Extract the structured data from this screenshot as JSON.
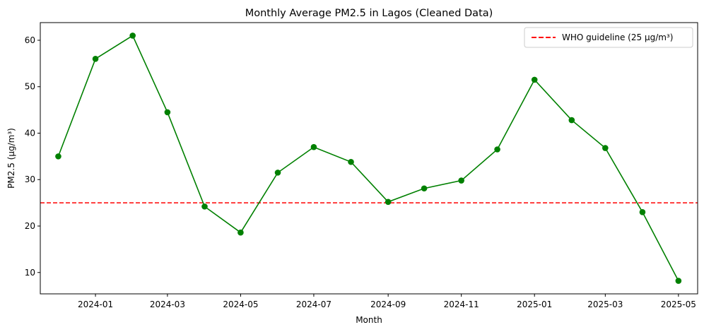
{
  "chart_data": {
    "type": "line",
    "title": "Monthly Average PM2.5 in Lagos (Cleaned Data)",
    "xlabel": "Month",
    "ylabel": "PM2.5 (µg/m³)",
    "x": [
      "2023-12-01",
      "2024-01-01",
      "2024-02-01",
      "2024-03-01",
      "2024-04-01",
      "2024-05-01",
      "2024-06-01",
      "2024-07-01",
      "2024-08-01",
      "2024-09-01",
      "2024-10-01",
      "2024-11-01",
      "2024-12-01",
      "2025-01-01",
      "2025-02-01",
      "2025-03-01",
      "2025-04-01",
      "2025-05-01"
    ],
    "series": [
      {
        "values": [
          35.0,
          56.0,
          61.0,
          44.5,
          24.2,
          18.6,
          31.5,
          37.0,
          33.8,
          25.2,
          28.1,
          29.8,
          36.5,
          51.5,
          42.8,
          36.8,
          23.0,
          8.2
        ],
        "color": "#008000",
        "marker": "circle"
      }
    ],
    "reference_lines": [
      {
        "label": "WHO guideline (25 µg/m³)",
        "y": 25,
        "color": "#ff0000",
        "style": "dashed"
      }
    ],
    "xticks": [
      "2024-01",
      "2024-03",
      "2024-05",
      "2024-07",
      "2024-09",
      "2024-11",
      "2025-01",
      "2025-03",
      "2025-05"
    ],
    "yticks": [
      10,
      20,
      30,
      40,
      50,
      60
    ],
    "xlim": [
      "2023-11-16",
      "2025-05-17"
    ],
    "ylim": [
      5.4,
      63.8
    ],
    "grid": false,
    "legend_position": "top-right"
  }
}
